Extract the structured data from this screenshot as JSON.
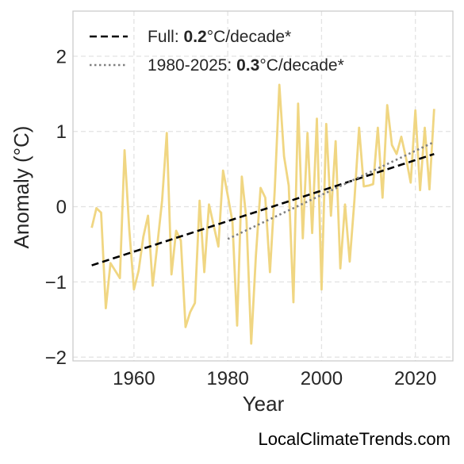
{
  "chart_data": {
    "type": "line",
    "xlabel": "Year",
    "ylabel": "Anomaly (°C)",
    "xlim": [
      1947,
      2028
    ],
    "ylim": [
      -2.05,
      2.6
    ],
    "x_ticks": [
      1960,
      1980,
      2000,
      2020
    ],
    "x_tick_labels": [
      "1960",
      "1980",
      "2000",
      "2020"
    ],
    "y_ticks": [
      -2,
      -1,
      0,
      1,
      2
    ],
    "y_tick_labels": [
      "−2",
      "−1",
      "0",
      "1",
      "2"
    ],
    "grid": true,
    "legend_position": "top-left",
    "series": [
      {
        "x": [
          1951,
          1952,
          1953,
          1954,
          1955,
          1956,
          1957,
          1958,
          1959,
          1960,
          1961,
          1962,
          1963,
          1964,
          1965,
          1966,
          1967,
          1968,
          1969,
          1970,
          1971,
          1972,
          1973,
          1974,
          1975,
          1976,
          1977,
          1978,
          1979,
          1980,
          1981,
          1982,
          1983,
          1984,
          1985,
          1986,
          1987,
          1988,
          1989,
          1990,
          1991,
          1992,
          1993,
          1994,
          1995,
          1996,
          1997,
          1998,
          1999,
          2000,
          2001,
          2002,
          2003,
          2004,
          2005,
          2006,
          2007,
          2008,
          2009,
          2010,
          2011,
          2012,
          2013,
          2014,
          2015,
          2016,
          2017,
          2018,
          2019,
          2020,
          2021,
          2022,
          2023,
          2024
        ],
        "y": [
          -0.28,
          -0.02,
          -0.08,
          -1.35,
          -0.75,
          -0.85,
          -0.95,
          0.75,
          -0.3,
          -1.1,
          -0.85,
          -0.4,
          -0.12,
          -1.05,
          -0.5,
          0.08,
          0.98,
          -0.9,
          -0.32,
          -0.45,
          -1.6,
          -1.4,
          -1.28,
          0.08,
          -0.87,
          0.03,
          -0.25,
          -0.53,
          0.48,
          0.15,
          -0.2,
          -1.58,
          0.4,
          -0.18,
          -1.82,
          -0.65,
          0.25,
          0.12,
          -0.87,
          0.2,
          1.62,
          0.67,
          0.28,
          -1.27,
          1.37,
          -0.42,
          0.98,
          -0.35,
          1.17,
          -1.1,
          1.1,
          -0.12,
          0.87,
          -0.82,
          0.03,
          -0.73,
          0.08,
          1.05,
          0.27,
          0.28,
          0.3,
          1.05,
          0.12,
          1.35,
          0.82,
          0.7,
          0.93,
          0.65,
          0.32,
          1.28,
          0.22,
          1.05,
          0.23,
          1.3
        ],
        "color": "#f0d682"
      }
    ],
    "trendlines": [
      {
        "x": [
          1951,
          2024
        ],
        "y": [
          -0.78,
          0.7
        ],
        "color": "#000000",
        "style": "dashed"
      },
      {
        "x": [
          1980,
          2024
        ],
        "y": [
          -0.43,
          0.86
        ],
        "color": "#808080",
        "style": "dotted"
      }
    ],
    "legend": [
      {
        "prefix": "Full: ",
        "bold": "0.2",
        "suffix": "°C/decade*"
      },
      {
        "prefix": "1980-2025: ",
        "bold": "0.3",
        "suffix": "°C/decade*"
      }
    ]
  },
  "credit": "LocalClimateTrends.com"
}
